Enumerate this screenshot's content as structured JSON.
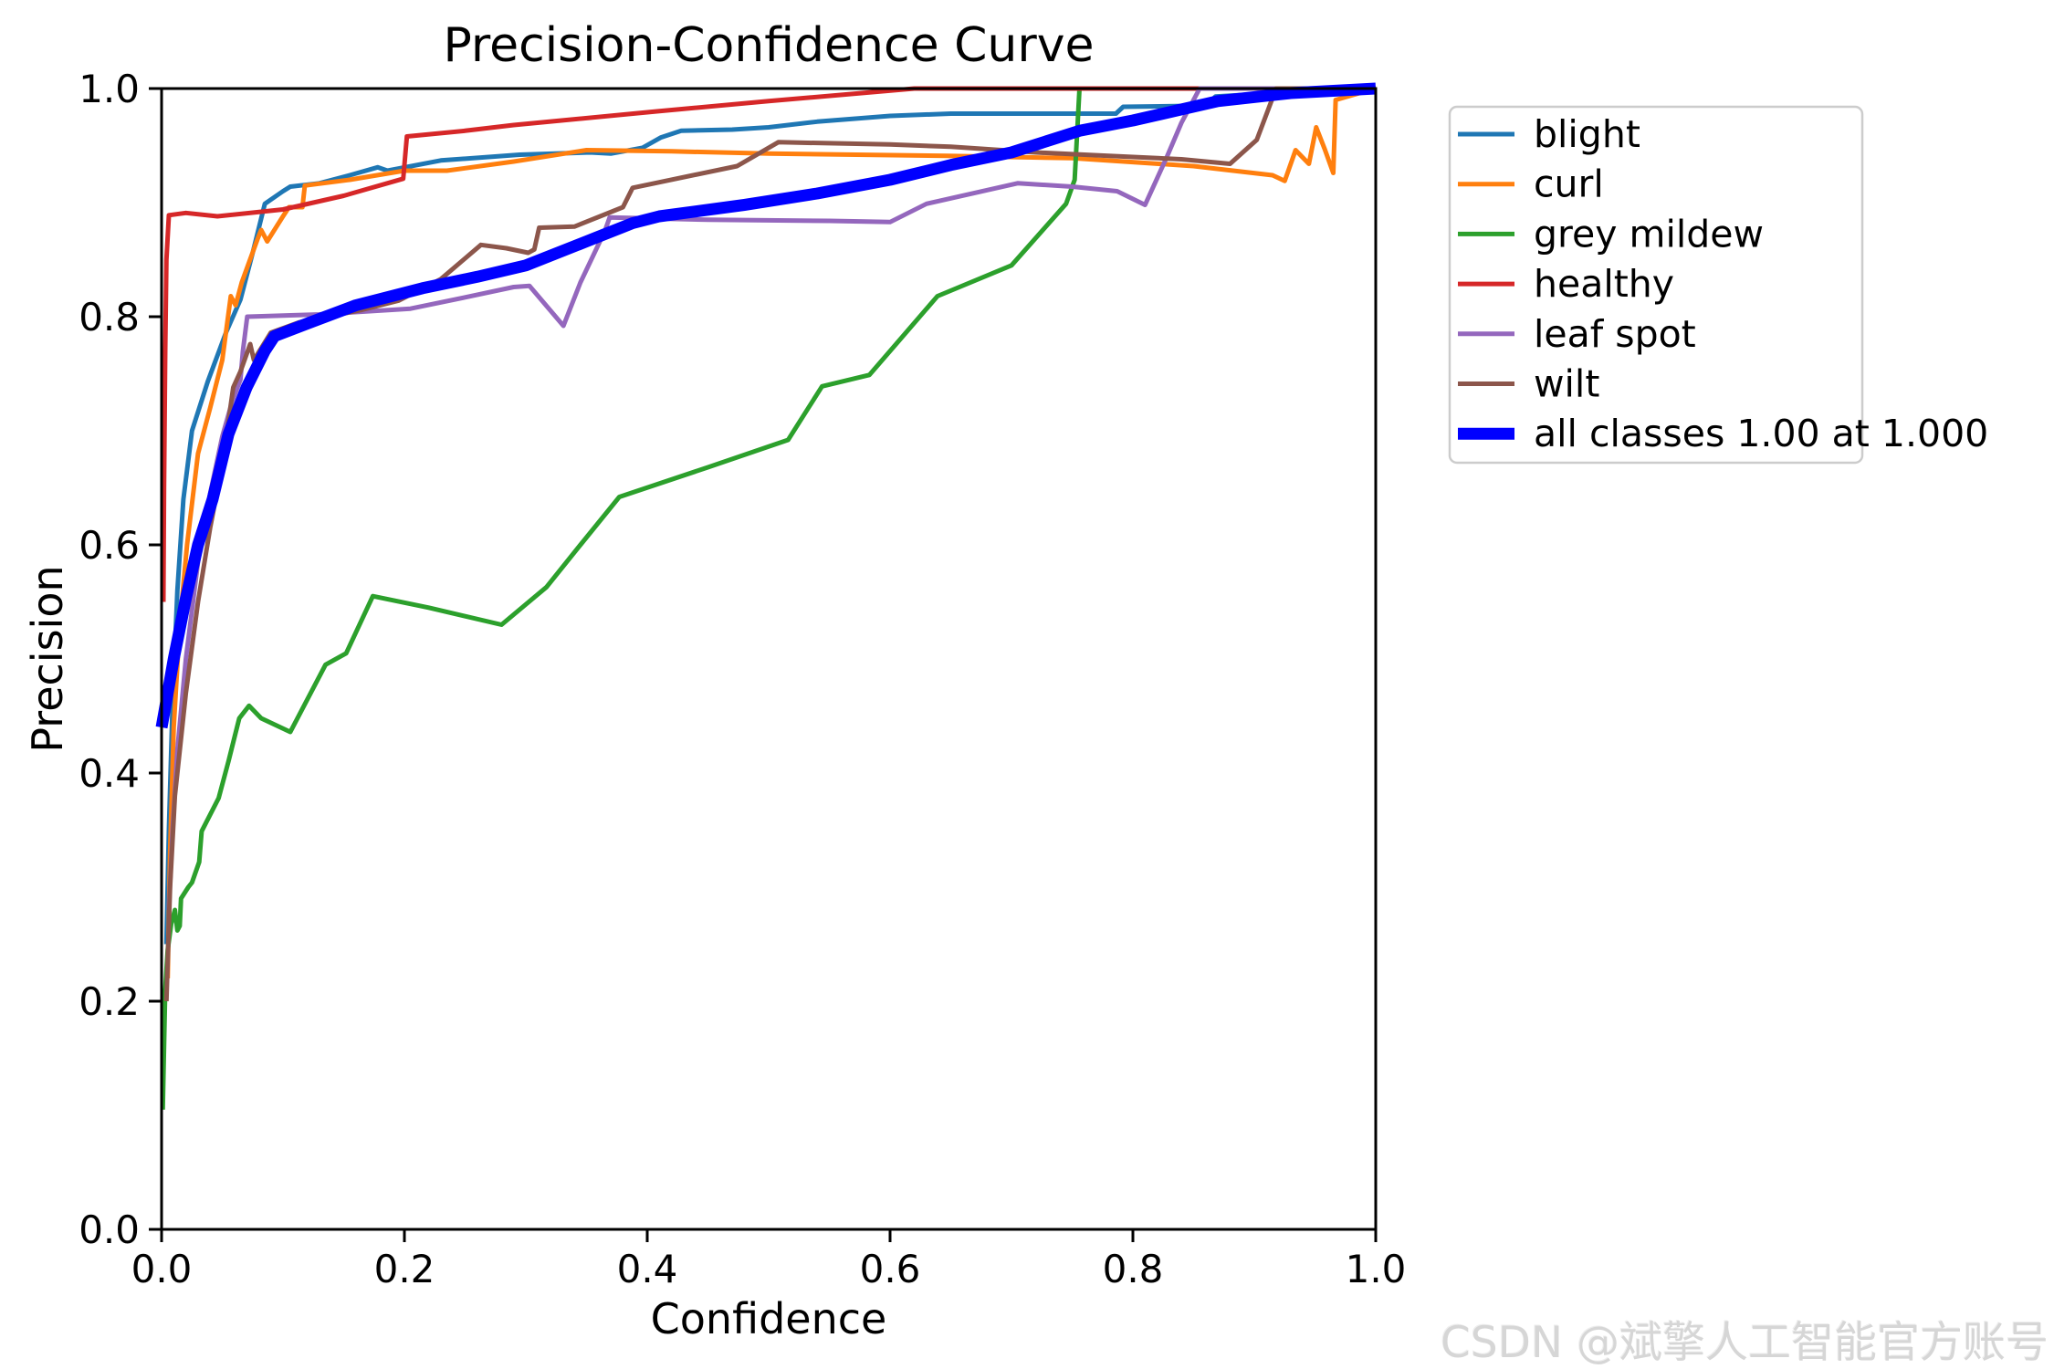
{
  "figure": {
    "title": "Precision-Confidence Curve",
    "xlabel": "Confidence",
    "ylabel": "Precision",
    "watermark": "CSDN @斌擎人工智能官方账号"
  },
  "chart_data": {
    "type": "line",
    "title": "Precision-Confidence Curve",
    "xlabel": "Confidence",
    "ylabel": "Precision",
    "xlim": [
      0.0,
      1.0
    ],
    "ylim": [
      0.0,
      1.0
    ],
    "x_ticks": [
      0.0,
      0.2,
      0.4,
      0.6,
      0.8,
      1.0
    ],
    "y_ticks": [
      0.0,
      0.2,
      0.4,
      0.6,
      0.8,
      1.0
    ],
    "grid": false,
    "legend_position": "outside-upper-right",
    "frame_color": "#000000",
    "legend_border_color": "#cccccc",
    "series": [
      {
        "name": "blight",
        "color": "#1f77b4",
        "width": 5,
        "points": [
          [
            0.004,
            0.25
          ],
          [
            0.006,
            0.35
          ],
          [
            0.009,
            0.46
          ],
          [
            0.013,
            0.56
          ],
          [
            0.018,
            0.64
          ],
          [
            0.025,
            0.7
          ],
          [
            0.038,
            0.743
          ],
          [
            0.053,
            0.786
          ],
          [
            0.065,
            0.815
          ],
          [
            0.075,
            0.856
          ],
          [
            0.085,
            0.899
          ],
          [
            0.1,
            0.91
          ],
          [
            0.106,
            0.914
          ],
          [
            0.13,
            0.917
          ],
          [
            0.155,
            0.924
          ],
          [
            0.178,
            0.931
          ],
          [
            0.186,
            0.928
          ],
          [
            0.23,
            0.937
          ],
          [
            0.295,
            0.942
          ],
          [
            0.353,
            0.944
          ],
          [
            0.37,
            0.943
          ],
          [
            0.396,
            0.948
          ],
          [
            0.411,
            0.957
          ],
          [
            0.428,
            0.963
          ],
          [
            0.47,
            0.964
          ],
          [
            0.5,
            0.966
          ],
          [
            0.54,
            0.971
          ],
          [
            0.6,
            0.976
          ],
          [
            0.65,
            0.978
          ],
          [
            0.7,
            0.978
          ],
          [
            0.786,
            0.978
          ],
          [
            0.792,
            0.984
          ],
          [
            0.86,
            0.985
          ],
          [
            0.868,
            0.993
          ],
          [
            0.9,
            0.995
          ],
          [
            0.93,
            1.0
          ],
          [
            1.0,
            1.0
          ]
        ]
      },
      {
        "name": "curl",
        "color": "#ff7f0e",
        "width": 5,
        "points": [
          [
            0.005,
            0.22
          ],
          [
            0.007,
            0.33
          ],
          [
            0.01,
            0.44
          ],
          [
            0.015,
            0.53
          ],
          [
            0.021,
            0.6
          ],
          [
            0.03,
            0.68
          ],
          [
            0.04,
            0.72
          ],
          [
            0.05,
            0.762
          ],
          [
            0.057,
            0.818
          ],
          [
            0.061,
            0.81
          ],
          [
            0.066,
            0.83
          ],
          [
            0.079,
            0.868
          ],
          [
            0.082,
            0.876
          ],
          [
            0.087,
            0.866
          ],
          [
            0.1,
            0.888
          ],
          [
            0.105,
            0.896
          ],
          [
            0.116,
            0.896
          ],
          [
            0.118,
            0.915
          ],
          [
            0.155,
            0.92
          ],
          [
            0.2,
            0.928
          ],
          [
            0.235,
            0.928
          ],
          [
            0.29,
            0.936
          ],
          [
            0.35,
            0.946
          ],
          [
            0.42,
            0.945
          ],
          [
            0.5,
            0.943
          ],
          [
            0.647,
            0.941
          ],
          [
            0.75,
            0.939
          ],
          [
            0.85,
            0.932
          ],
          [
            0.915,
            0.924
          ],
          [
            0.925,
            0.919
          ],
          [
            0.934,
            0.946
          ],
          [
            0.945,
            0.934
          ],
          [
            0.951,
            0.966
          ],
          [
            0.958,
            0.947
          ],
          [
            0.965,
            0.926
          ],
          [
            0.967,
            0.99
          ],
          [
            1.0,
            1.0
          ]
        ]
      },
      {
        "name": "grey mildew",
        "color": "#2ca02c",
        "width": 5,
        "points": [
          [
            0.001,
            0.105
          ],
          [
            0.002,
            0.16
          ],
          [
            0.003,
            0.21
          ],
          [
            0.005,
            0.245
          ],
          [
            0.008,
            0.268
          ],
          [
            0.011,
            0.28
          ],
          [
            0.013,
            0.262
          ],
          [
            0.015,
            0.266
          ],
          [
            0.016,
            0.29
          ],
          [
            0.022,
            0.3
          ],
          [
            0.025,
            0.304
          ],
          [
            0.031,
            0.322
          ],
          [
            0.033,
            0.349
          ],
          [
            0.047,
            0.378
          ],
          [
            0.055,
            0.41
          ],
          [
            0.064,
            0.448
          ],
          [
            0.072,
            0.459
          ],
          [
            0.082,
            0.448
          ],
          [
            0.106,
            0.436
          ],
          [
            0.135,
            0.495
          ],
          [
            0.152,
            0.505
          ],
          [
            0.174,
            0.555
          ],
          [
            0.22,
            0.545
          ],
          [
            0.28,
            0.53
          ],
          [
            0.317,
            0.563
          ],
          [
            0.345,
            0.6
          ],
          [
            0.377,
            0.642
          ],
          [
            0.45,
            0.668
          ],
          [
            0.516,
            0.692
          ],
          [
            0.544,
            0.739
          ],
          [
            0.583,
            0.749
          ],
          [
            0.639,
            0.818
          ],
          [
            0.7,
            0.845
          ],
          [
            0.745,
            0.899
          ],
          [
            0.752,
            0.92
          ],
          [
            0.756,
            1.0
          ],
          [
            1.0,
            1.0
          ]
        ]
      },
      {
        "name": "healthy",
        "color": "#d62728",
        "width": 5,
        "points": [
          [
            0.0015,
            0.55
          ],
          [
            0.002,
            0.65
          ],
          [
            0.003,
            0.77
          ],
          [
            0.004,
            0.85
          ],
          [
            0.006,
            0.889
          ],
          [
            0.02,
            0.891
          ],
          [
            0.046,
            0.888
          ],
          [
            0.1,
            0.894
          ],
          [
            0.15,
            0.906
          ],
          [
            0.199,
            0.921
          ],
          [
            0.202,
            0.958
          ],
          [
            0.25,
            0.963
          ],
          [
            0.29,
            0.968
          ],
          [
            0.408,
            0.98
          ],
          [
            0.5,
            0.989
          ],
          [
            0.62,
            1.0
          ],
          [
            1.0,
            1.0
          ]
        ]
      },
      {
        "name": "leaf spot",
        "color": "#9467bd",
        "width": 5,
        "points": [
          [
            0.006,
            0.28
          ],
          [
            0.009,
            0.35
          ],
          [
            0.013,
            0.42
          ],
          [
            0.02,
            0.5
          ],
          [
            0.03,
            0.585
          ],
          [
            0.04,
            0.645
          ],
          [
            0.05,
            0.695
          ],
          [
            0.058,
            0.725
          ],
          [
            0.065,
            0.745
          ],
          [
            0.067,
            0.77
          ],
          [
            0.0705,
            0.8
          ],
          [
            0.13,
            0.802
          ],
          [
            0.205,
            0.807
          ],
          [
            0.25,
            0.817
          ],
          [
            0.29,
            0.826
          ],
          [
            0.303,
            0.827
          ],
          [
            0.331,
            0.792
          ],
          [
            0.345,
            0.83
          ],
          [
            0.365,
            0.875
          ],
          [
            0.369,
            0.887
          ],
          [
            0.45,
            0.885
          ],
          [
            0.55,
            0.884
          ],
          [
            0.6,
            0.883
          ],
          [
            0.63,
            0.899
          ],
          [
            0.705,
            0.917
          ],
          [
            0.75,
            0.914
          ],
          [
            0.787,
            0.91
          ],
          [
            0.81,
            0.898
          ],
          [
            0.828,
            0.94
          ],
          [
            0.84,
            0.97
          ],
          [
            0.855,
            1.0
          ],
          [
            1.0,
            1.0
          ]
        ]
      },
      {
        "name": "wilt",
        "color": "#8c564b",
        "width": 5,
        "points": [
          [
            0.004,
            0.2
          ],
          [
            0.007,
            0.3
          ],
          [
            0.011,
            0.38
          ],
          [
            0.02,
            0.47
          ],
          [
            0.03,
            0.55
          ],
          [
            0.04,
            0.615
          ],
          [
            0.05,
            0.67
          ],
          [
            0.059,
            0.738
          ],
          [
            0.065,
            0.752
          ],
          [
            0.073,
            0.776
          ],
          [
            0.076,
            0.762
          ],
          [
            0.09,
            0.786
          ],
          [
            0.113,
            0.795
          ],
          [
            0.165,
            0.806
          ],
          [
            0.195,
            0.814
          ],
          [
            0.23,
            0.833
          ],
          [
            0.263,
            0.863
          ],
          [
            0.284,
            0.86
          ],
          [
            0.302,
            0.856
          ],
          [
            0.307,
            0.859
          ],
          [
            0.311,
            0.878
          ],
          [
            0.34,
            0.879
          ],
          [
            0.38,
            0.896
          ],
          [
            0.388,
            0.913
          ],
          [
            0.474,
            0.932
          ],
          [
            0.508,
            0.953
          ],
          [
            0.6,
            0.951
          ],
          [
            0.65,
            0.949
          ],
          [
            0.72,
            0.944
          ],
          [
            0.78,
            0.941
          ],
          [
            0.84,
            0.938
          ],
          [
            0.88,
            0.934
          ],
          [
            0.902,
            0.955
          ],
          [
            0.918,
            1.0
          ],
          [
            1.0,
            1.0
          ]
        ]
      },
      {
        "name": "all classes 1.00 at 1.000",
        "color": "#0000ff",
        "width": 13,
        "points": [
          [
            0.0,
            0.44
          ],
          [
            0.005,
            0.47
          ],
          [
            0.01,
            0.5
          ],
          [
            0.02,
            0.553
          ],
          [
            0.03,
            0.6
          ],
          [
            0.042,
            0.64
          ],
          [
            0.055,
            0.697
          ],
          [
            0.07,
            0.738
          ],
          [
            0.085,
            0.77
          ],
          [
            0.093,
            0.783
          ],
          [
            0.12,
            0.794
          ],
          [
            0.16,
            0.81
          ],
          [
            0.215,
            0.825
          ],
          [
            0.26,
            0.835
          ],
          [
            0.3,
            0.845
          ],
          [
            0.35,
            0.866
          ],
          [
            0.388,
            0.882
          ],
          [
            0.41,
            0.888
          ],
          [
            0.48,
            0.898
          ],
          [
            0.54,
            0.908
          ],
          [
            0.6,
            0.92
          ],
          [
            0.65,
            0.933
          ],
          [
            0.7,
            0.944
          ],
          [
            0.756,
            0.963
          ],
          [
            0.8,
            0.972
          ],
          [
            0.87,
            0.989
          ],
          [
            0.93,
            0.996
          ],
          [
            1.0,
            1.0
          ]
        ]
      }
    ]
  }
}
